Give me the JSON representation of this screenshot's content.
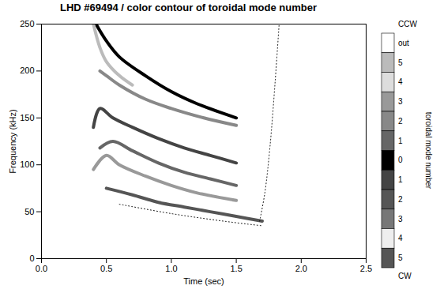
{
  "chart_data": {
    "type": "line",
    "title": "LHD #69494 / color contour of toroidal mode number",
    "x_label": "Time (sec)",
    "y_label": "Frequency (kHz)",
    "xlim": [
      0,
      2.5
    ],
    "xticks": [
      {
        "value": 0,
        "label": "0.0"
      },
      {
        "value": 0.5,
        "label": "0.5"
      },
      {
        "value": 1,
        "label": "1.0"
      },
      {
        "value": 1.5,
        "label": "1.5"
      },
      {
        "value": 2,
        "label": "2.0"
      },
      {
        "value": 2.5,
        "label": "2.5"
      }
    ],
    "ylim": [
      0,
      250
    ],
    "yticks": [
      0,
      50,
      100,
      150,
      200,
      250
    ],
    "series": [
      {
        "color": "#000000",
        "line_style": "solid",
        "x": [
          0.42,
          0.5,
          0.6,
          0.8,
          1.0,
          1.2,
          1.5
        ],
        "values": [
          250,
          232,
          215,
          195,
          178,
          165,
          150
        ]
      },
      {
        "color": "#888888",
        "line_style": "solid",
        "x": [
          0.45,
          0.5,
          0.6,
          0.8,
          1.0,
          1.25,
          1.5
        ],
        "values": [
          200,
          195,
          185,
          170,
          160,
          150,
          142
        ]
      },
      {
        "color": "#444444",
        "line_style": "solid",
        "x": [
          0.4,
          0.45,
          0.55,
          0.7,
          0.9,
          1.1,
          1.3,
          1.5
        ],
        "values": [
          140,
          160,
          150,
          140,
          128,
          118,
          110,
          102
        ]
      },
      {
        "color": "#666666",
        "line_style": "solid",
        "x": [
          0.45,
          0.55,
          0.7,
          0.9,
          1.1,
          1.3,
          1.5
        ],
        "values": [
          118,
          125,
          115,
          102,
          92,
          85,
          78
        ]
      },
      {
        "color": "#999999",
        "line_style": "solid",
        "x": [
          0.4,
          0.5,
          0.6,
          0.8,
          1.0,
          1.2,
          1.5
        ],
        "values": [
          95,
          110,
          100,
          88,
          78,
          70,
          62
        ]
      },
      {
        "color": "#555555",
        "line_style": "solid",
        "x": [
          0.5,
          0.7,
          0.9,
          1.1,
          1.3,
          1.5,
          1.7
        ],
        "values": [
          75,
          68,
          60,
          55,
          50,
          45,
          40
        ]
      },
      {
        "color": "#bbbbbb",
        "line_style": "solid",
        "x": [
          0.4,
          0.45,
          0.5,
          0.6,
          0.7
        ],
        "values": [
          250,
          225,
          210,
          195,
          185
        ]
      },
      {
        "color": "#000000",
        "line_style": "dotted",
        "x": [
          0.6,
          1.0,
          1.4,
          1.7
        ],
        "values": [
          58,
          48,
          40,
          35
        ]
      },
      {
        "color": "#000000",
        "line_style": "dotted",
        "x": [
          1.68,
          1.72,
          1.76,
          1.8,
          1.83
        ],
        "values": [
          40,
          70,
          120,
          190,
          250
        ]
      }
    ],
    "colorbar": {
      "title": "toroidal mode number",
      "top_label": "CCW",
      "bottom_label": "CW",
      "cells": [
        {
          "label": "out",
          "color": "#ffffff"
        },
        {
          "value": 5,
          "color": "#bbbbbb"
        },
        {
          "value": 4,
          "color": "#dddddd"
        },
        {
          "value": 3,
          "color": "#999999"
        },
        {
          "value": 2,
          "color": "#888888"
        },
        {
          "value": 1,
          "color": "#666666"
        },
        {
          "value": 0,
          "color": "#000000"
        },
        {
          "value": 1,
          "color": "#444444"
        },
        {
          "value": 2,
          "color": "#555555"
        },
        {
          "value": 3,
          "color": "#777777"
        },
        {
          "value": 4,
          "color": "#eeeeee"
        },
        {
          "value": 5,
          "color": "#555555"
        }
      ]
    }
  }
}
